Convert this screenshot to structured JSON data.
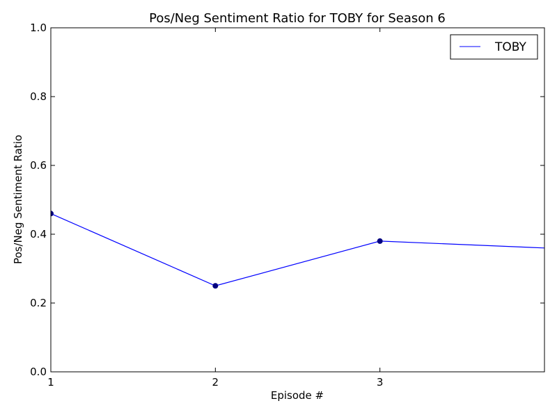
{
  "chart_data": {
    "type": "line",
    "title": "Pos/Neg Sentiment Ratio for TOBY for Season 6",
    "xlabel": "Episode #",
    "ylabel": "Pos/Neg Sentiment Ratio",
    "xlim": [
      1,
      4
    ],
    "ylim": [
      0.0,
      1.0
    ],
    "x_ticks": [
      1,
      2,
      3
    ],
    "x_tick_labels": [
      "1",
      "2",
      "3"
    ],
    "y_ticks": [
      0.0,
      0.2,
      0.4,
      0.6,
      0.8,
      1.0
    ],
    "y_tick_labels": [
      "0.0",
      "0.2",
      "0.4",
      "0.6",
      "0.8",
      "1.0"
    ],
    "grid": false,
    "legend_position": "top-right",
    "series": [
      {
        "name": "TOBY",
        "color": "#0000ff",
        "x": [
          1,
          2,
          3,
          4
        ],
        "y": [
          0.46,
          0.25,
          0.38,
          0.36
        ],
        "markers": [
          true,
          true,
          true,
          false
        ]
      }
    ]
  }
}
